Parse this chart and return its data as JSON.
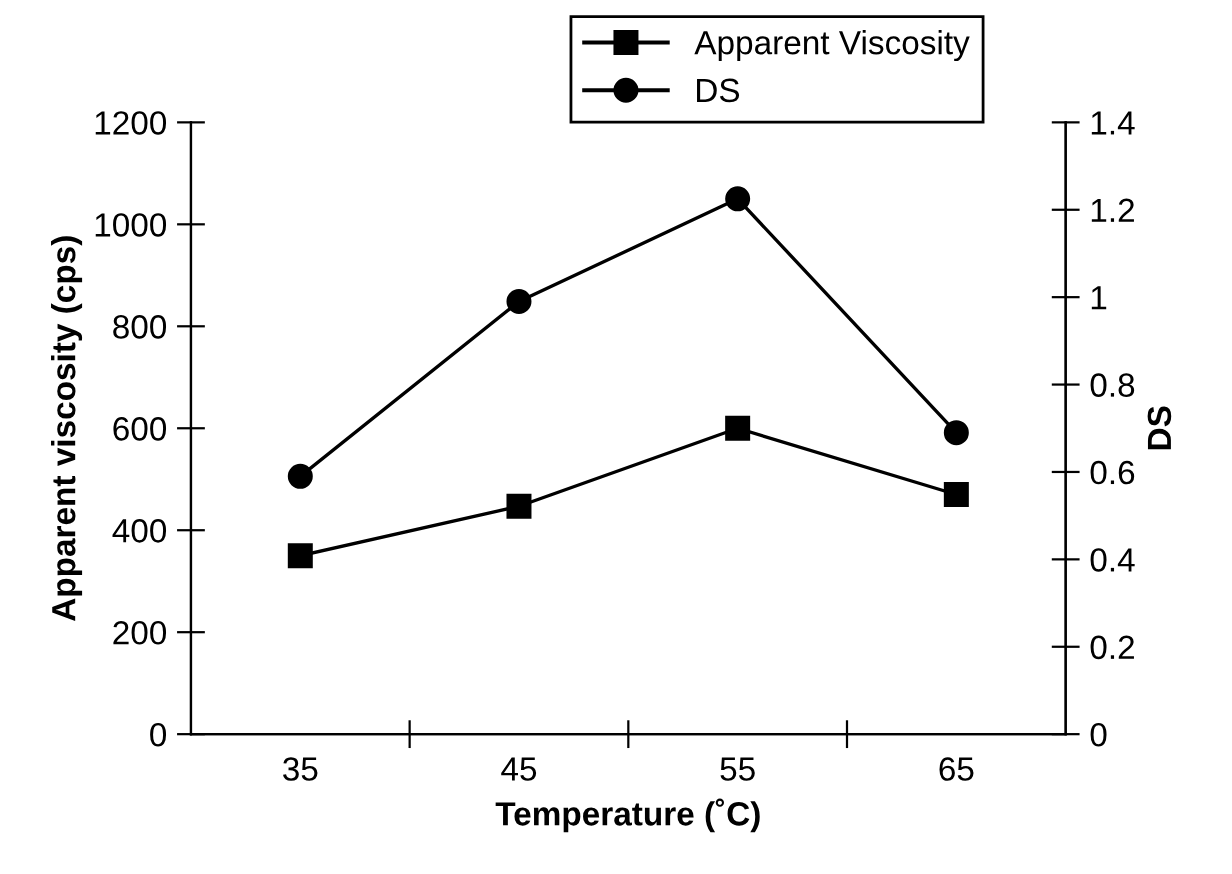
{
  "chart_data": {
    "type": "line",
    "xlabel": "Temperature (˚C)",
    "ylabel": "Apparent viscosity (cps)",
    "y2label": "DS",
    "categories": [
      "35",
      "45",
      "55",
      "65"
    ],
    "series": [
      {
        "name": "Apparent Viscosity",
        "color": "#000000",
        "values": [
          350,
          447,
          600,
          470
        ],
        "marker": "square"
      },
      {
        "name": "DS",
        "color": "#000000",
        "values": [
          0.59,
          0.99,
          1.225,
          0.69
        ],
        "marker": "circle",
        "axis": "y2"
      }
    ],
    "ylim": [
      0,
      1200
    ],
    "yticks": [
      0,
      200,
      400,
      600,
      800,
      1000,
      1200
    ],
    "y2lim": [
      0,
      1.4
    ],
    "y2ticks": [
      0,
      0.2,
      0.4,
      0.6,
      0.8,
      1,
      1.2,
      1.4
    ],
    "grid": false,
    "legend": "top",
    "line_style": "solid"
  }
}
